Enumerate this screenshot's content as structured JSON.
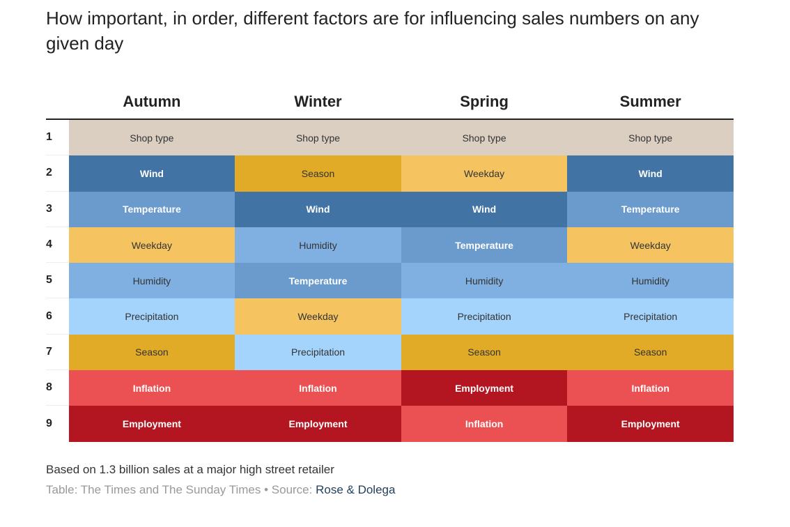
{
  "title": "How important, in order, different factors are for influencing sales numbers on any given day",
  "chart_data": {
    "type": "table",
    "columns": [
      "Autumn",
      "Winter",
      "Spring",
      "Summer"
    ],
    "ranks": [
      "1",
      "2",
      "3",
      "4",
      "5",
      "6",
      "7",
      "8",
      "9"
    ],
    "rows": [
      [
        "Shop type",
        "Shop type",
        "Shop type",
        "Shop type"
      ],
      [
        "Wind",
        "Season",
        "Weekday",
        "Wind"
      ],
      [
        "Temperature",
        "Wind",
        "Wind",
        "Temperature"
      ],
      [
        "Weekday",
        "Humidity",
        "Temperature",
        "Weekday"
      ],
      [
        "Humidity",
        "Temperature",
        "Humidity",
        "Humidity"
      ],
      [
        "Precipitation",
        "Weekday",
        "Precipitation",
        "Precipitation"
      ],
      [
        "Season",
        "Precipitation",
        "Season",
        "Season"
      ],
      [
        "Inflation",
        "Inflation",
        "Employment",
        "Inflation"
      ],
      [
        "Employment",
        "Employment",
        "Inflation",
        "Employment"
      ]
    ],
    "factor_colors": {
      "Shop type": "#dbcfc2",
      "Wind": "#4174a5",
      "Temperature": "#6a9bcc",
      "Humidity": "#80b0e1",
      "Precipitation": "#a4d3fc",
      "Weekday": "#f5c460",
      "Season": "#e1ab27",
      "Inflation": "#eb5152",
      "Employment": "#b31620"
    },
    "dark_text_factors": [
      "Wind",
      "Temperature",
      "Inflation",
      "Employment"
    ]
  },
  "footer": {
    "note": "Based on 1.3 billion sales at a major high street retailer",
    "credit_prefix": "Table: The Times and The Sunday Times • Source: ",
    "source_name": "Rose & Dolega"
  }
}
